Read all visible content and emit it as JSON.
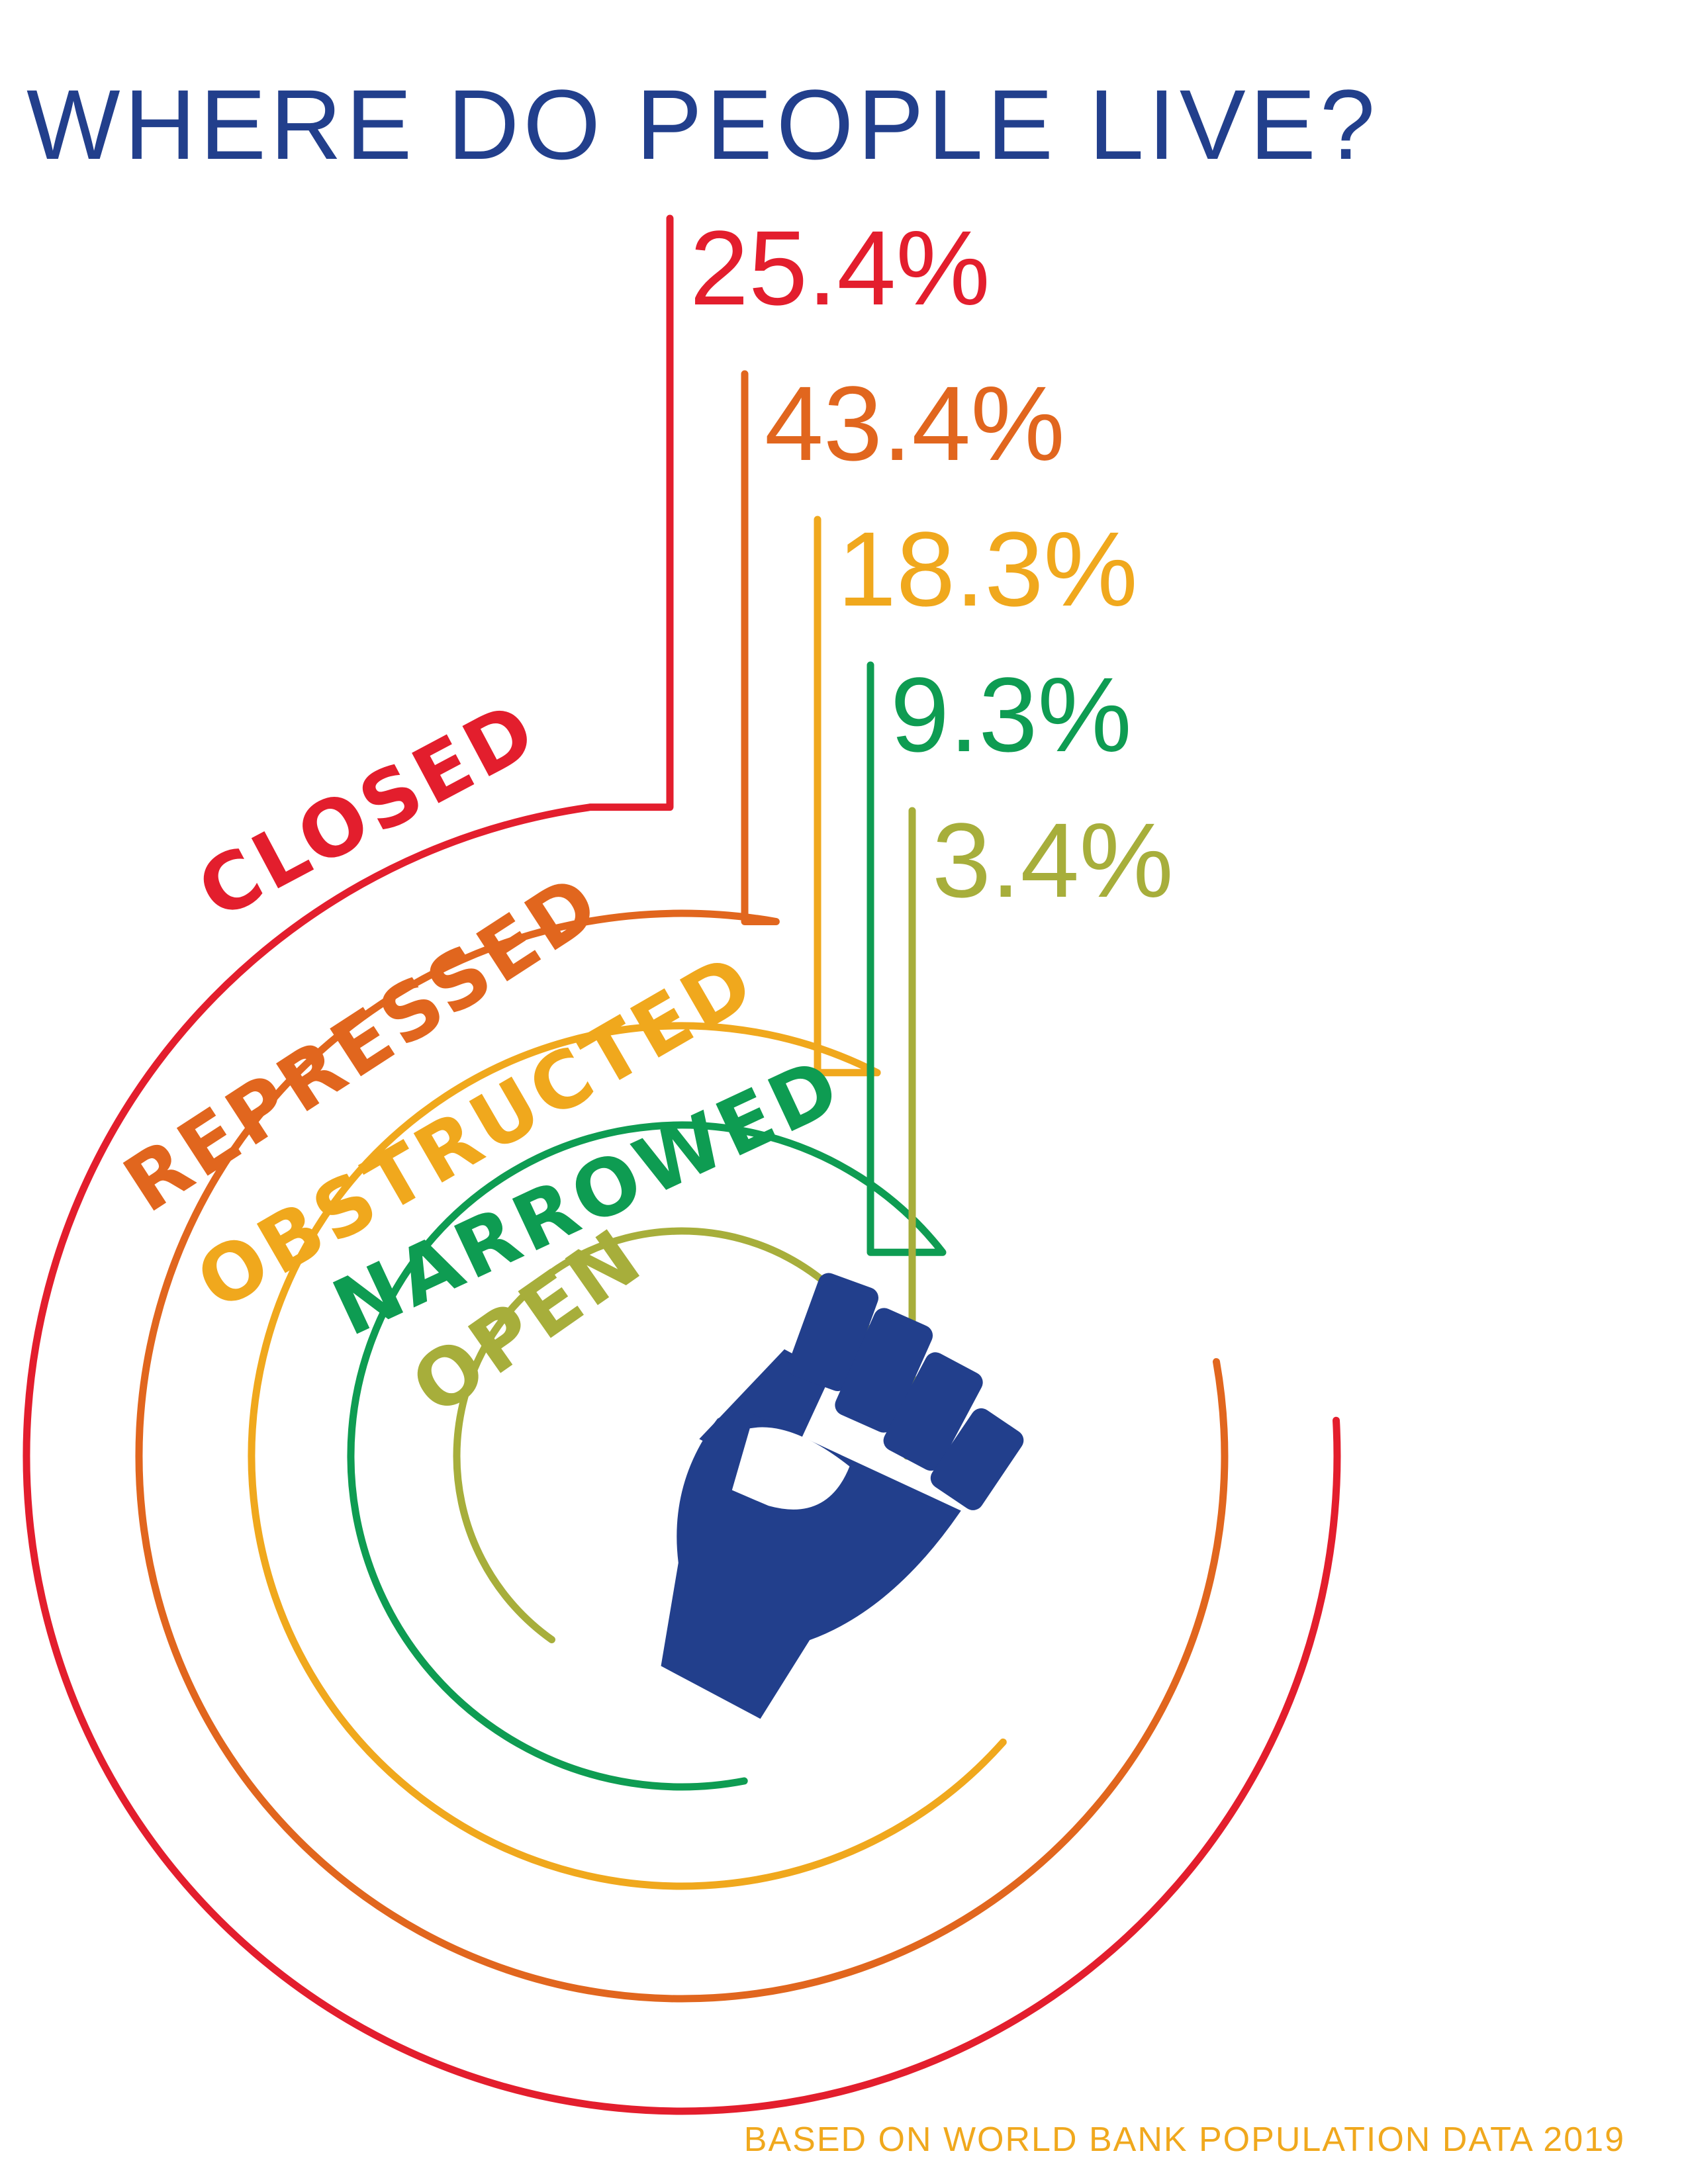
{
  "chart_data": {
    "type": "radial-bar",
    "title": "WHERE DO PEOPLE LIVE?",
    "categories": [
      "CLOSED",
      "REPRESSED",
      "OBSTRUCTED",
      "NARROWED",
      "OPEN"
    ],
    "values": [
      25.4,
      43.4,
      18.3,
      9.3,
      3.4
    ],
    "value_labels": [
      "25.4%",
      "43.4%",
      "18.3%",
      "9.3%",
      "3.4%"
    ],
    "unit": "%",
    "colors": [
      "#e31e2d",
      "#e1661e",
      "#f0a81d",
      "#0e9c52",
      "#a7ae3b"
    ],
    "source": "BASED ON WORLD BANK POPULATION DATA 2019",
    "center_icon": "raised-fist-icon"
  },
  "title_color": "#223f8c",
  "source_color": "#f0a81d"
}
